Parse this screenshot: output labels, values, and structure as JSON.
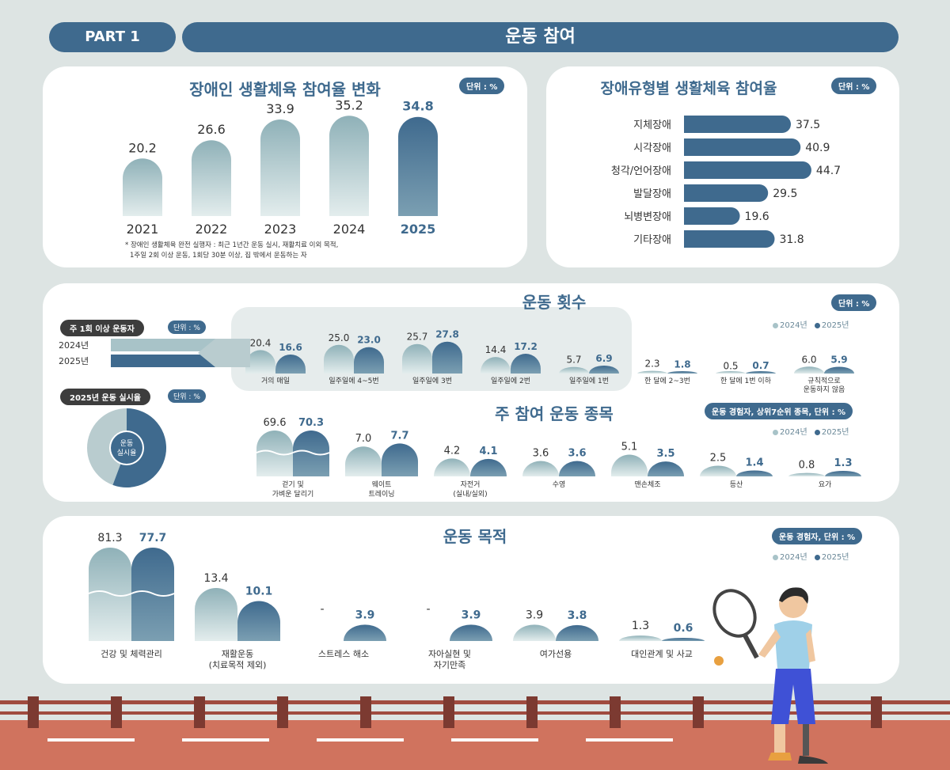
{
  "header": {
    "part": "PART 1",
    "title": "운동 참여"
  },
  "colors": {
    "accent": "#3f6a8e",
    "light": "#a8c3c8",
    "background": "#dde4e3"
  },
  "legend": {
    "y2024": "2024년",
    "y2025": "2025년"
  },
  "participation": {
    "title": "장애인 생활체육 참여율 변화",
    "unit": "단위 : %",
    "note_line1": "* 장애인 생활체육 완전 실행자 : 최근 1년간 운동 실시, 재활치료 이외 목적,",
    "note_line2": "1주일 2회 이상 운동, 1회당 30분 이상, 집 밖에서 운동하는 자"
  },
  "by_type": {
    "title": "장애유형별 생활체육 참여율",
    "unit": "단위 : %"
  },
  "frequency": {
    "title": "운동 횟수",
    "unit": "단위 : %",
    "weekly_badge": "주 1회 이상 운동자",
    "weekly_unit": "단위 : %",
    "rate_badge": "2025년 운동 실시율",
    "rate_unit": "단위 : %",
    "donut_label_1": "운동",
    "donut_label_2": "실시율"
  },
  "sports": {
    "title": "주 참여 운동 종목",
    "badge": "운동 경험자, 상위7순위 종목, 단위 : %"
  },
  "purpose": {
    "title": "운동 목적",
    "badge": "운동 경험자, 단위 : %"
  },
  "chart_data": [
    {
      "id": "participation",
      "type": "bar",
      "title": "장애인 생활체육 참여율 변화",
      "categories": [
        "2021",
        "2022",
        "2023",
        "2024",
        "2025"
      ],
      "values": [
        20.2,
        26.6,
        33.9,
        35.2,
        34.8
      ]
    },
    {
      "id": "by_type",
      "type": "bar",
      "orientation": "horizontal",
      "title": "장애유형별 생활체육 참여율",
      "categories": [
        "지체장애",
        "시각장애",
        "청각/언어장애",
        "발달장애",
        "뇌병변장애",
        "기타장애"
      ],
      "values": [
        37.5,
        40.9,
        44.7,
        29.5,
        19.6,
        31.8
      ]
    },
    {
      "id": "frequency",
      "type": "bar",
      "title": "운동 횟수",
      "categories": [
        "거의 매일",
        "일주일에 4~5번",
        "일주일에 3번",
        "일주일에 2번",
        "일주일에 1번",
        "한 달에 2~3번",
        "한 달에 1번 이하",
        "규칙적으로|운동하지 않음"
      ],
      "series": [
        {
          "name": "2024년",
          "values": [
            20.4,
            25.0,
            25.7,
            14.4,
            5.7,
            2.3,
            0.5,
            6.0
          ]
        },
        {
          "name": "2025년",
          "values": [
            16.6,
            23.0,
            27.8,
            17.2,
            6.9,
            1.8,
            0.7,
            5.9
          ]
        }
      ]
    },
    {
      "id": "weekly",
      "type": "bar",
      "orientation": "horizontal",
      "title": "주 1회 이상 운동자",
      "categories": [
        "2024년",
        "2025년"
      ],
      "values": [
        91.2,
        91.5
      ]
    },
    {
      "id": "rate",
      "type": "pie",
      "title": "2025년 운동 실시율",
      "labels": [
        "운동 실시율"
      ],
      "values": [
        55.7
      ]
    },
    {
      "id": "sports",
      "type": "bar",
      "title": "주 참여 운동 종목",
      "categories": [
        "걷기 및|가벼운 달리기",
        "웨이트|트레이닝",
        "자전거|(실내/실외)",
        "수영",
        "맨손체조",
        "등산",
        "요가"
      ],
      "series": [
        {
          "name": "2024년",
          "values": [
            69.6,
            7.0,
            4.2,
            3.6,
            5.1,
            2.5,
            0.8
          ]
        },
        {
          "name": "2025년",
          "values": [
            70.3,
            7.7,
            4.1,
            3.6,
            3.5,
            1.4,
            1.3
          ]
        }
      ]
    },
    {
      "id": "purpose",
      "type": "bar",
      "title": "운동 목적",
      "categories": [
        "건강 및 체력관리",
        "재활운동|(치료목적 제외)",
        "스트레스 해소",
        "자아실현 및|자기만족",
        "여가선용",
        "대인관계 및 사교"
      ],
      "series": [
        {
          "name": "2024년",
          "values": [
            81.3,
            13.4,
            null,
            null,
            3.9,
            1.3
          ],
          "labels": [
            "81.3",
            "13.4",
            "-",
            "-",
            "3.9",
            "1.3"
          ]
        },
        {
          "name": "2025년",
          "values": [
            77.7,
            10.1,
            3.9,
            3.9,
            3.8,
            0.6
          ],
          "labels": [
            "77.7",
            "10.1",
            "3.9",
            "3.9",
            "3.8",
            "0.6"
          ]
        }
      ]
    }
  ]
}
